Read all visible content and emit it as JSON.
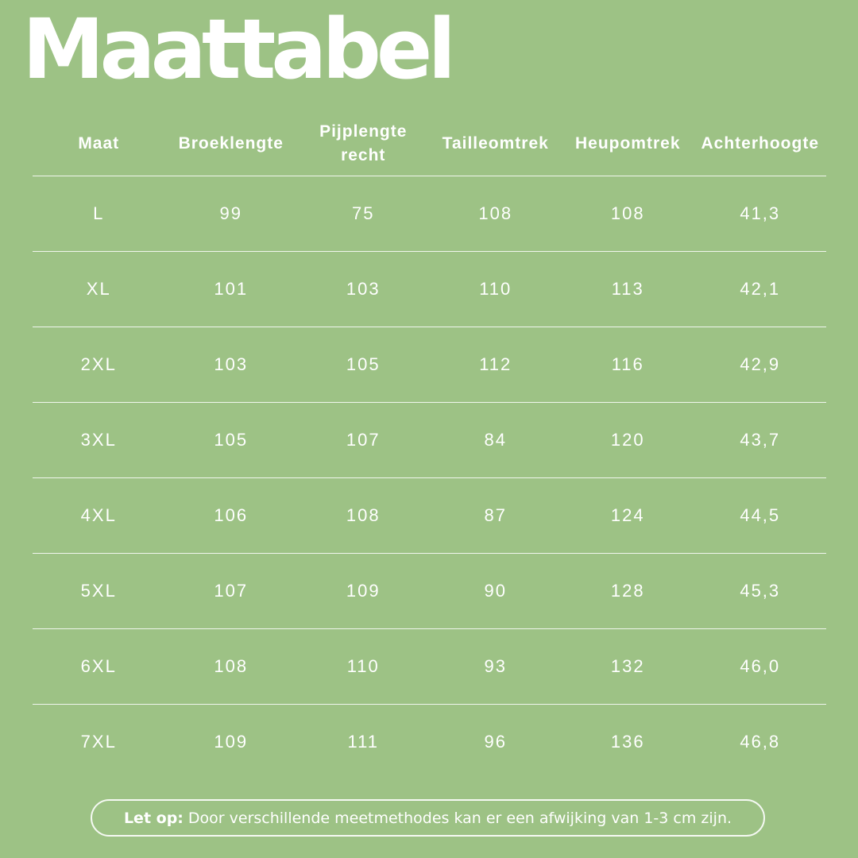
{
  "title": "Maattabel",
  "table": {
    "headers": [
      "Maat",
      "Broeklengte",
      "Pijplengte\nrecht",
      "Tailleomtrek",
      "Heupomtrek",
      "Achterhoogte"
    ],
    "rows": [
      [
        "L",
        "99",
        "75",
        "108",
        "108",
        "41,3"
      ],
      [
        "XL",
        "101",
        "103",
        "110",
        "113",
        "42,1"
      ],
      [
        "2XL",
        "103",
        "105",
        "112",
        "116",
        "42,9"
      ],
      [
        "3XL",
        "105",
        "107",
        "84",
        "120",
        "43,7"
      ],
      [
        "4XL",
        "106",
        "108",
        "87",
        "124",
        "44,5"
      ],
      [
        "5XL",
        "107",
        "109",
        "90",
        "128",
        "45,3"
      ],
      [
        "6XL",
        "108",
        "110",
        "93",
        "132",
        "46,0"
      ],
      [
        "7XL",
        "109",
        "111",
        "96",
        "136",
        "46,8"
      ]
    ]
  },
  "note": {
    "label": "Let op:",
    "text": "Door verschillende meetmethodes kan er een afwijking van 1-3 cm zijn."
  },
  "colors": {
    "background": "#9dc285",
    "text": "#ffffff"
  }
}
